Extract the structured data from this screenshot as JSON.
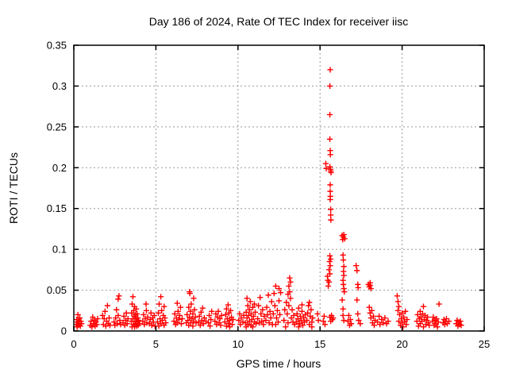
{
  "chart_data": {
    "type": "scatter",
    "title": "Day 186 of 2024, Rate Of TEC Index for receiver iisc",
    "xlabel": "GPS time / hours",
    "ylabel": "ROTI / TECUs",
    "xlim": [
      0,
      25
    ],
    "ylim": [
      0,
      0.35
    ],
    "xticks": [
      0,
      5,
      10,
      15,
      20,
      25
    ],
    "xtick_labels": [
      "0",
      "5",
      "10",
      "15",
      "20",
      "25"
    ],
    "yticks": [
      0,
      0.05,
      0.1,
      0.15,
      0.2,
      0.25,
      0.3,
      0.35
    ],
    "ytick_labels": [
      "0",
      "0.05",
      "0.1",
      "0.15",
      "0.2",
      "0.25",
      "0.3",
      "0.35"
    ],
    "grid": true,
    "legend": false,
    "marker": "plus",
    "marker_color": "#ff0000",
    "grid_color": "#999999",
    "axis_color": "#000000",
    "points": [
      [
        0.15,
        0.008
      ],
      [
        0.18,
        0.014
      ],
      [
        0.2,
        0.005
      ],
      [
        0.22,
        0.011
      ],
      [
        0.25,
        0.02
      ],
      [
        0.28,
        0.007
      ],
      [
        0.3,
        0.013
      ],
      [
        0.33,
        0.009
      ],
      [
        0.36,
        0.016
      ],
      [
        0.4,
        0.006
      ],
      [
        0.43,
        0.012
      ],
      [
        0.47,
        0.009
      ],
      [
        1.0,
        0.007
      ],
      [
        1.05,
        0.012
      ],
      [
        1.1,
        0.005
      ],
      [
        1.15,
        0.017
      ],
      [
        1.2,
        0.009
      ],
      [
        1.25,
        0.013
      ],
      [
        1.3,
        0.006
      ],
      [
        1.35,
        0.011
      ],
      [
        1.4,
        0.008
      ],
      [
        1.45,
        0.015
      ],
      [
        1.75,
        0.019
      ],
      [
        1.8,
        0.008
      ],
      [
        1.85,
        0.015
      ],
      [
        1.9,
        0.024
      ],
      [
        1.95,
        0.006
      ],
      [
        2.0,
        0.012
      ],
      [
        2.05,
        0.031
      ],
      [
        2.1,
        0.009
      ],
      [
        2.15,
        0.016
      ],
      [
        2.2,
        0.007
      ],
      [
        2.45,
        0.011
      ],
      [
        2.5,
        0.007
      ],
      [
        2.55,
        0.016
      ],
      [
        2.6,
        0.026
      ],
      [
        2.65,
        0.009
      ],
      [
        2.7,
        0.039
      ],
      [
        2.75,
        0.043
      ],
      [
        2.7,
        0.019
      ],
      [
        2.8,
        0.013
      ],
      [
        2.85,
        0.008
      ],
      [
        3.0,
        0.01
      ],
      [
        3.05,
        0.018
      ],
      [
        3.1,
        0.007
      ],
      [
        3.15,
        0.013
      ],
      [
        3.2,
        0.022
      ],
      [
        3.25,
        0.009
      ],
      [
        3.3,
        0.015
      ],
      [
        3.5,
        0.012
      ],
      [
        3.52,
        0.022
      ],
      [
        3.55,
        0.005
      ],
      [
        3.55,
        0.033
      ],
      [
        3.6,
        0.015
      ],
      [
        3.6,
        0.042
      ],
      [
        3.62,
        0.008
      ],
      [
        3.65,
        0.025
      ],
      [
        3.68,
        0.018
      ],
      [
        3.7,
        0.005
      ],
      [
        3.7,
        0.03
      ],
      [
        3.72,
        0.012
      ],
      [
        3.75,
        0.02
      ],
      [
        3.78,
        0.009
      ],
      [
        3.8,
        0.027
      ],
      [
        3.8,
        0.015
      ],
      [
        3.82,
        0.006
      ],
      [
        3.85,
        0.021
      ],
      [
        3.88,
        0.011
      ],
      [
        3.9,
        0.016
      ],
      [
        3.92,
        0.007
      ],
      [
        3.95,
        0.013
      ],
      [
        4.0,
        0.009
      ],
      [
        4.2,
        0.012
      ],
      [
        4.25,
        0.02
      ],
      [
        4.3,
        0.008
      ],
      [
        4.35,
        0.015
      ],
      [
        4.4,
        0.033
      ],
      [
        4.42,
        0.025
      ],
      [
        4.45,
        0.01
      ],
      [
        4.5,
        0.017
      ],
      [
        4.6,
        0.009
      ],
      [
        4.65,
        0.014
      ],
      [
        4.7,
        0.022
      ],
      [
        4.75,
        0.007
      ],
      [
        4.8,
        0.016
      ],
      [
        4.85,
        0.011
      ],
      [
        4.9,
        0.019
      ],
      [
        4.95,
        0.006
      ],
      [
        5.1,
        0.011
      ],
      [
        5.15,
        0.022
      ],
      [
        5.18,
        0.006
      ],
      [
        5.2,
        0.033
      ],
      [
        5.25,
        0.015
      ],
      [
        5.3,
        0.009
      ],
      [
        5.3,
        0.042
      ],
      [
        5.35,
        0.025
      ],
      [
        5.4,
        0.013
      ],
      [
        5.45,
        0.019
      ],
      [
        5.5,
        0.007
      ],
      [
        5.5,
        0.03
      ],
      [
        5.55,
        0.016
      ],
      [
        5.6,
        0.01
      ],
      [
        6.1,
        0.012
      ],
      [
        6.15,
        0.021
      ],
      [
        6.2,
        0.008
      ],
      [
        6.25,
        0.016
      ],
      [
        6.3,
        0.034
      ],
      [
        6.3,
        0.01
      ],
      [
        6.35,
        0.024
      ],
      [
        6.4,
        0.014
      ],
      [
        6.45,
        0.019
      ],
      [
        6.5,
        0.029
      ],
      [
        6.55,
        0.009
      ],
      [
        6.6,
        0.015
      ],
      [
        6.85,
        0.01
      ],
      [
        6.9,
        0.02
      ],
      [
        6.95,
        0.013
      ],
      [
        7.0,
        0.029
      ],
      [
        7.0,
        0.007
      ],
      [
        7.05,
        0.048
      ],
      [
        7.07,
        0.046
      ],
      [
        7.05,
        0.017
      ],
      [
        7.1,
        0.024
      ],
      [
        7.12,
        0.01
      ],
      [
        7.15,
        0.033
      ],
      [
        7.2,
        0.015
      ],
      [
        7.25,
        0.021
      ],
      [
        7.25,
        0.006
      ],
      [
        7.3,
        0.04
      ],
      [
        7.3,
        0.012
      ],
      [
        7.35,
        0.026
      ],
      [
        7.4,
        0.017
      ],
      [
        7.45,
        0.01
      ],
      [
        7.6,
        0.011
      ],
      [
        7.65,
        0.018
      ],
      [
        7.7,
        0.007
      ],
      [
        7.75,
        0.023
      ],
      [
        7.8,
        0.013
      ],
      [
        7.85,
        0.028
      ],
      [
        7.9,
        0.009
      ],
      [
        7.95,
        0.016
      ],
      [
        8.05,
        0.012
      ],
      [
        8.2,
        0.01
      ],
      [
        8.25,
        0.019
      ],
      [
        8.3,
        0.006
      ],
      [
        8.35,
        0.014
      ],
      [
        8.4,
        0.024
      ],
      [
        8.6,
        0.012
      ],
      [
        8.65,
        0.021
      ],
      [
        8.7,
        0.008
      ],
      [
        8.75,
        0.017
      ],
      [
        8.8,
        0.024
      ],
      [
        8.85,
        0.01
      ],
      [
        8.9,
        0.015
      ],
      [
        8.95,
        0.007
      ],
      [
        9.0,
        0.019
      ],
      [
        9.2,
        0.011
      ],
      [
        9.25,
        0.02
      ],
      [
        9.3,
        0.006
      ],
      [
        9.3,
        0.027
      ],
      [
        9.35,
        0.015
      ],
      [
        9.4,
        0.032
      ],
      [
        9.42,
        0.009
      ],
      [
        9.45,
        0.022
      ],
      [
        9.5,
        0.013
      ],
      [
        9.5,
        0.005
      ],
      [
        9.55,
        0.025
      ],
      [
        9.6,
        0.017
      ],
      [
        9.65,
        0.008
      ],
      [
        9.7,
        0.014
      ],
      [
        10.05,
        0.013
      ],
      [
        10.1,
        0.021
      ],
      [
        10.15,
        0.008
      ],
      [
        10.2,
        0.016
      ],
      [
        10.3,
        0.011
      ],
      [
        10.35,
        0.019
      ],
      [
        10.45,
        0.01
      ],
      [
        10.5,
        0.023
      ],
      [
        10.5,
        0.005
      ],
      [
        10.55,
        0.04
      ],
      [
        10.55,
        0.016
      ],
      [
        10.6,
        0.031
      ],
      [
        10.6,
        0.008
      ],
      [
        10.65,
        0.019
      ],
      [
        10.7,
        0.012
      ],
      [
        10.7,
        0.026
      ],
      [
        10.75,
        0.036
      ],
      [
        10.8,
        0.007
      ],
      [
        10.8,
        0.021
      ],
      [
        10.85,
        0.014
      ],
      [
        10.9,
        0.029
      ],
      [
        10.9,
        0.005
      ],
      [
        10.95,
        0.018
      ],
      [
        11.0,
        0.011
      ],
      [
        11.0,
        0.033
      ],
      [
        11.05,
        0.023
      ],
      [
        11.1,
        0.009
      ],
      [
        11.2,
        0.015
      ],
      [
        11.25,
        0.031
      ],
      [
        11.3,
        0.01
      ],
      [
        11.35,
        0.041
      ],
      [
        11.4,
        0.021
      ],
      [
        11.45,
        0.012
      ],
      [
        11.5,
        0.026
      ],
      [
        11.55,
        0.008
      ],
      [
        11.6,
        0.018
      ],
      [
        11.7,
        0.013
      ],
      [
        11.75,
        0.029
      ],
      [
        11.8,
        0.02
      ],
      [
        11.85,
        0.044
      ],
      [
        11.9,
        0.01
      ],
      [
        11.95,
        0.024
      ],
      [
        12.0,
        0.016
      ],
      [
        12.05,
        0.036
      ],
      [
        12.1,
        0.008
      ],
      [
        12.15,
        0.021
      ],
      [
        12.2,
        0.046
      ],
      [
        12.25,
        0.031
      ],
      [
        12.3,
        0.055
      ],
      [
        12.3,
        0.008
      ],
      [
        12.35,
        0.016
      ],
      [
        12.4,
        0.025
      ],
      [
        12.45,
        0.011
      ],
      [
        12.5,
        0.052
      ],
      [
        12.5,
        0.037
      ],
      [
        12.55,
        0.02
      ],
      [
        12.6,
        0.047
      ],
      [
        12.8,
        0.013
      ],
      [
        12.85,
        0.026
      ],
      [
        12.9,
        0.005
      ],
      [
        12.95,
        0.035
      ],
      [
        13.0,
        0.021
      ],
      [
        13.05,
        0.045
      ],
      [
        13.05,
        0.01
      ],
      [
        13.1,
        0.055
      ],
      [
        13.1,
        0.031
      ],
      [
        13.15,
        0.048
      ],
      [
        13.15,
        0.065
      ],
      [
        13.2,
        0.06
      ],
      [
        13.2,
        0.04
      ],
      [
        13.25,
        0.016
      ],
      [
        13.3,
        0.026
      ],
      [
        13.35,
        0.011
      ],
      [
        13.4,
        0.019
      ],
      [
        13.45,
        0.008
      ],
      [
        13.55,
        0.011
      ],
      [
        13.6,
        0.021
      ],
      [
        13.65,
        0.015
      ],
      [
        13.7,
        0.028
      ],
      [
        13.7,
        0.005
      ],
      [
        13.75,
        0.009
      ],
      [
        13.8,
        0.018
      ],
      [
        13.85,
        0.013
      ],
      [
        13.9,
        0.032
      ],
      [
        13.9,
        0.024
      ],
      [
        13.95,
        0.007
      ],
      [
        14.0,
        0.016
      ],
      [
        14.05,
        0.011
      ],
      [
        14.1,
        0.02
      ],
      [
        14.2,
        0.013
      ],
      [
        14.25,
        0.022
      ],
      [
        14.3,
        0.031
      ],
      [
        14.35,
        0.035
      ],
      [
        14.35,
        0.008
      ],
      [
        14.4,
        0.018
      ],
      [
        14.45,
        0.026
      ],
      [
        14.5,
        0.011
      ],
      [
        14.5,
        0.005
      ],
      [
        14.55,
        0.016
      ],
      [
        14.85,
        0.021
      ],
      [
        14.9,
        0.013
      ],
      [
        15.2,
        0.012
      ],
      [
        15.25,
        0.018
      ],
      [
        15.3,
        0.008
      ],
      [
        15.45,
        0.067
      ],
      [
        15.48,
        0.062
      ],
      [
        15.5,
        0.055
      ],
      [
        15.55,
        0.075
      ],
      [
        15.55,
        0.06
      ],
      [
        15.58,
        0.085
      ],
      [
        15.6,
        0.092
      ],
      [
        15.6,
        0.07
      ],
      [
        15.62,
        0.08
      ],
      [
        15.65,
        0.088
      ],
      [
        15.62,
        0.32
      ],
      [
        15.6,
        0.3
      ],
      [
        15.6,
        0.265
      ],
      [
        15.6,
        0.235
      ],
      [
        15.62,
        0.221
      ],
      [
        15.63,
        0.216
      ],
      [
        15.35,
        0.205
      ],
      [
        15.38,
        0.199
      ],
      [
        15.6,
        0.201
      ],
      [
        15.63,
        0.198
      ],
      [
        15.65,
        0.196
      ],
      [
        15.67,
        0.194
      ],
      [
        15.62,
        0.179
      ],
      [
        15.62,
        0.171
      ],
      [
        15.63,
        0.165
      ],
      [
        15.62,
        0.161
      ],
      [
        15.65,
        0.149
      ],
      [
        15.65,
        0.142
      ],
      [
        15.66,
        0.136
      ],
      [
        15.6,
        0.017
      ],
      [
        15.65,
        0.012
      ],
      [
        15.7,
        0.019
      ],
      [
        15.75,
        0.014
      ],
      [
        15.8,
        0.016
      ],
      [
        16.35,
        0.117
      ],
      [
        16.38,
        0.112
      ],
      [
        16.42,
        0.115
      ],
      [
        16.45,
        0.118
      ],
      [
        16.5,
        0.113
      ],
      [
        16.4,
        0.093
      ],
      [
        16.42,
        0.087
      ],
      [
        16.45,
        0.079
      ],
      [
        16.43,
        0.073
      ],
      [
        16.45,
        0.068
      ],
      [
        16.4,
        0.062
      ],
      [
        16.42,
        0.057
      ],
      [
        16.45,
        0.052
      ],
      [
        16.48,
        0.048
      ],
      [
        16.35,
        0.038
      ],
      [
        16.4,
        0.027
      ],
      [
        16.4,
        0.019
      ],
      [
        16.45,
        0.013
      ],
      [
        16.7,
        0.012
      ],
      [
        16.75,
        0.019
      ],
      [
        16.8,
        0.007
      ],
      [
        16.85,
        0.014
      ],
      [
        16.9,
        0.009
      ],
      [
        17.2,
        0.08
      ],
      [
        17.25,
        0.074
      ],
      [
        17.3,
        0.057
      ],
      [
        17.32,
        0.053
      ],
      [
        17.25,
        0.038
      ],
      [
        17.3,
        0.021
      ],
      [
        17.35,
        0.013
      ],
      [
        17.45,
        0.009
      ],
      [
        17.95,
        0.057
      ],
      [
        18.0,
        0.054
      ],
      [
        18.05,
        0.056
      ],
      [
        18.1,
        0.052
      ],
      [
        18.05,
        0.059
      ],
      [
        18.0,
        0.029
      ],
      [
        18.05,
        0.022
      ],
      [
        18.1,
        0.016
      ],
      [
        18.15,
        0.025
      ],
      [
        18.2,
        0.01
      ],
      [
        18.25,
        0.018
      ],
      [
        18.3,
        0.007
      ],
      [
        18.35,
        0.013
      ],
      [
        18.5,
        0.011
      ],
      [
        18.6,
        0.018
      ],
      [
        18.65,
        0.008
      ],
      [
        18.75,
        0.014
      ],
      [
        18.85,
        0.01
      ],
      [
        18.95,
        0.016
      ],
      [
        19.05,
        0.009
      ],
      [
        19.15,
        0.012
      ],
      [
        19.7,
        0.043
      ],
      [
        19.75,
        0.036
      ],
      [
        19.8,
        0.03
      ],
      [
        19.75,
        0.025
      ],
      [
        19.8,
        0.012
      ],
      [
        19.85,
        0.02
      ],
      [
        19.9,
        0.007
      ],
      [
        19.95,
        0.015
      ],
      [
        20.0,
        0.01
      ],
      [
        20.0,
        0.022
      ],
      [
        20.05,
        0.005
      ],
      [
        20.1,
        0.017
      ],
      [
        20.15,
        0.012
      ],
      [
        20.2,
        0.024
      ],
      [
        20.25,
        0.008
      ],
      [
        20.3,
        0.014
      ],
      [
        20.9,
        0.012
      ],
      [
        20.95,
        0.02
      ],
      [
        21.0,
        0.006
      ],
      [
        21.05,
        0.015
      ],
      [
        21.1,
        0.024
      ],
      [
        21.1,
        0.009
      ],
      [
        21.15,
        0.017
      ],
      [
        21.2,
        0.012
      ],
      [
        21.25,
        0.021
      ],
      [
        21.3,
        0.03
      ],
      [
        21.3,
        0.005
      ],
      [
        21.35,
        0.014
      ],
      [
        21.4,
        0.019
      ],
      [
        21.45,
        0.008
      ],
      [
        21.5,
        0.013
      ],
      [
        21.55,
        0.017
      ],
      [
        21.6,
        0.01
      ],
      [
        21.65,
        0.007
      ],
      [
        21.85,
        0.012
      ],
      [
        21.9,
        0.017
      ],
      [
        21.95,
        0.007
      ],
      [
        22.0,
        0.013
      ],
      [
        22.05,
        0.009
      ],
      [
        22.1,
        0.015
      ],
      [
        22.15,
        0.005
      ],
      [
        22.2,
        0.011
      ],
      [
        22.25,
        0.033
      ],
      [
        22.5,
        0.01
      ],
      [
        22.55,
        0.014
      ],
      [
        22.6,
        0.008
      ],
      [
        22.65,
        0.012
      ],
      [
        22.7,
        0.015
      ],
      [
        22.75,
        0.009
      ],
      [
        22.85,
        0.012
      ],
      [
        23.3,
        0.009
      ],
      [
        23.35,
        0.013
      ],
      [
        23.4,
        0.006
      ],
      [
        23.45,
        0.011
      ],
      [
        23.5,
        0.008
      ],
      [
        23.55,
        0.012
      ],
      [
        23.6,
        0.007
      ]
    ]
  }
}
